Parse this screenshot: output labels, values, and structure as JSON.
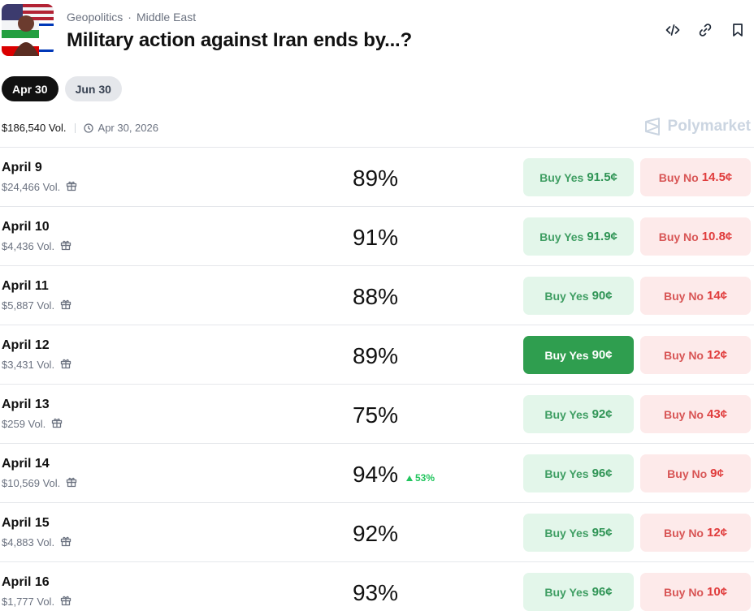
{
  "header": {
    "category": "Geopolitics",
    "subcategory": "Middle East",
    "separator": "·",
    "title": "Military action against Iran ends by...?",
    "icons": [
      "embed-icon",
      "link-icon",
      "bookmark-icon"
    ]
  },
  "tabs": [
    {
      "label": "Apr 30",
      "active": true
    },
    {
      "label": "Jun 30",
      "active": false
    }
  ],
  "meta": {
    "volume": "$186,540 Vol.",
    "end_date": "Apr 30, 2026"
  },
  "brand": {
    "name": "Polymarket"
  },
  "buttons": {
    "yes_prefix": "Buy Yes",
    "no_prefix": "Buy No"
  },
  "rows": [
    {
      "label": "April 9",
      "volume": "$24,466 Vol.",
      "percent": "89%",
      "delta": "",
      "yes_price": "91.5¢",
      "no_price": "14.5¢",
      "yes_active": false
    },
    {
      "label": "April 10",
      "volume": "$4,436 Vol.",
      "percent": "91%",
      "delta": "",
      "yes_price": "91.9¢",
      "no_price": "10.8¢",
      "yes_active": false
    },
    {
      "label": "April 11",
      "volume": "$5,887 Vol.",
      "percent": "88%",
      "delta": "",
      "yes_price": "90¢",
      "no_price": "14¢",
      "yes_active": false
    },
    {
      "label": "April 12",
      "volume": "$3,431 Vol.",
      "percent": "89%",
      "delta": "",
      "yes_price": "90¢",
      "no_price": "12¢",
      "yes_active": true
    },
    {
      "label": "April 13",
      "volume": "$259 Vol.",
      "percent": "75%",
      "delta": "",
      "yes_price": "92¢",
      "no_price": "43¢",
      "yes_active": false
    },
    {
      "label": "April 14",
      "volume": "$10,569 Vol.",
      "percent": "94%",
      "delta": "53%",
      "yes_price": "96¢",
      "no_price": "9¢",
      "yes_active": false
    },
    {
      "label": "April 15",
      "volume": "$4,883 Vol.",
      "percent": "92%",
      "delta": "",
      "yes_price": "95¢",
      "no_price": "12¢",
      "yes_active": false
    },
    {
      "label": "April 16",
      "volume": "$1,777 Vol.",
      "percent": "93%",
      "delta": "",
      "yes_price": "96¢",
      "no_price": "10¢",
      "yes_active": false
    }
  ],
  "colors": {
    "yes_bg": "#e3f6ea",
    "yes_text": "#2f9455",
    "yes_solid": "#2f9e4f",
    "no_bg": "#fdeaea",
    "no_text": "#e03c3c",
    "delta_up": "#22c55e"
  }
}
